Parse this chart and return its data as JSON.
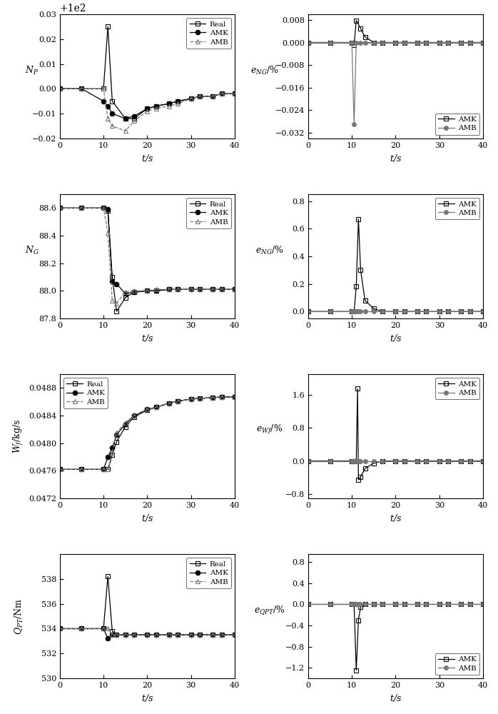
{
  "t1": [
    0,
    5,
    10,
    11,
    12,
    15,
    17,
    20,
    22,
    25,
    27,
    30,
    32,
    35,
    37,
    40
  ],
  "Np_real": [
    100.0,
    100.0,
    100.0,
    100.025,
    99.995,
    99.988,
    99.988,
    99.992,
    99.993,
    99.994,
    99.995,
    99.996,
    99.997,
    99.997,
    99.998,
    99.998
  ],
  "Np_AMK": [
    100.0,
    100.0,
    99.995,
    99.993,
    99.99,
    99.988,
    99.989,
    99.992,
    99.993,
    99.994,
    99.995,
    99.996,
    99.997,
    99.997,
    99.998,
    99.998
  ],
  "Np_AMB": [
    100.0,
    100.0,
    100.0,
    99.988,
    99.985,
    99.983,
    99.987,
    99.991,
    99.992,
    99.993,
    99.994,
    99.996,
    99.997,
    99.997,
    99.998,
    99.998
  ],
  "t_eNp": [
    0,
    5,
    10,
    10.5,
    11,
    12,
    13,
    15,
    17,
    20,
    22,
    25,
    27,
    30,
    32,
    35,
    37,
    40
  ],
  "eNp_AMK": [
    0.0,
    0.0,
    0.0,
    -0.001,
    0.0078,
    0.005,
    0.002,
    0.0,
    0.0,
    0.0,
    0.0,
    0.0,
    0.0,
    0.0,
    0.0,
    0.0,
    0.0,
    0.0
  ],
  "eNp_AMB": [
    0.0,
    0.0,
    0.0,
    -0.029,
    0.0,
    0.0,
    0.0,
    0.0,
    0.0,
    0.0,
    0.0,
    0.0,
    0.0,
    0.0,
    0.0,
    0.0,
    0.0,
    0.0
  ],
  "t2": [
    0,
    5,
    10,
    11,
    12,
    13,
    15,
    17,
    20,
    22,
    25,
    27,
    30,
    32,
    35,
    37,
    40
  ],
  "NG_real": [
    88.6,
    88.6,
    88.6,
    88.58,
    88.1,
    87.85,
    87.95,
    87.99,
    88.0,
    88.0,
    88.01,
    88.01,
    88.01,
    88.01,
    88.01,
    88.01,
    88.01
  ],
  "NG_AMK": [
    88.6,
    88.6,
    88.6,
    88.59,
    88.07,
    88.05,
    87.98,
    87.99,
    88.0,
    88.0,
    88.01,
    88.01,
    88.01,
    88.01,
    88.01,
    88.01,
    88.01
  ],
  "NG_AMB": [
    88.6,
    88.6,
    88.6,
    88.42,
    87.93,
    87.91,
    87.99,
    88.0,
    88.0,
    88.01,
    88.01,
    88.01,
    88.01,
    88.01,
    88.01,
    88.01,
    88.01
  ],
  "t_eNG": [
    0,
    5,
    10,
    10.5,
    11,
    11.5,
    12,
    13,
    15,
    17,
    20,
    22,
    25,
    27,
    30,
    32,
    35,
    37,
    40
  ],
  "eNG_AMK": [
    0.0,
    0.0,
    0.0,
    0.0,
    0.18,
    0.67,
    0.3,
    0.08,
    0.02,
    0.0,
    0.0,
    0.0,
    0.0,
    0.0,
    0.0,
    0.0,
    0.0,
    0.0,
    0.0
  ],
  "eNG_AMB": [
    0.0,
    0.0,
    0.0,
    0.0,
    0.0,
    0.0,
    0.0,
    0.0,
    0.0,
    0.0,
    0.0,
    0.0,
    0.0,
    0.0,
    0.0,
    0.0,
    0.0,
    0.0,
    0.0
  ],
  "t3": [
    0,
    5,
    10,
    11,
    12,
    13,
    15,
    17,
    20,
    22,
    25,
    27,
    30,
    32,
    35,
    37,
    40
  ],
  "Wf_real": [
    0.04762,
    0.04762,
    0.04762,
    0.04762,
    0.04783,
    0.04802,
    0.04824,
    0.04838,
    0.04848,
    0.04852,
    0.04858,
    0.04861,
    0.04864,
    0.04865,
    0.04866,
    0.04867,
    0.04867
  ],
  "Wf_AMK": [
    0.04762,
    0.04762,
    0.04762,
    0.0478,
    0.04793,
    0.04812,
    0.04828,
    0.0484,
    0.04849,
    0.04852,
    0.04858,
    0.04861,
    0.04864,
    0.04865,
    0.04866,
    0.04867,
    0.04867
  ],
  "Wf_AMB": [
    0.04762,
    0.04762,
    0.04762,
    0.04762,
    0.04786,
    0.04815,
    0.0483,
    0.0484,
    0.04849,
    0.04852,
    0.04858,
    0.04861,
    0.04864,
    0.04865,
    0.04866,
    0.04867,
    0.04867
  ],
  "t_eWf": [
    0,
    5,
    10,
    10.5,
    11,
    11.3,
    11.5,
    12,
    13,
    15,
    17,
    20,
    22,
    25,
    27,
    30,
    32,
    35,
    37,
    40
  ],
  "eWf_AMK": [
    0.0,
    0.0,
    0.0,
    0.0,
    0.0,
    1.75,
    -0.45,
    -0.38,
    -0.18,
    -0.05,
    0.0,
    0.0,
    0.0,
    0.0,
    0.0,
    0.0,
    0.0,
    0.0,
    0.0,
    0.0
  ],
  "eWf_AMB": [
    0.0,
    0.0,
    0.0,
    0.0,
    0.0,
    0.0,
    0.0,
    0.0,
    0.0,
    0.0,
    0.0,
    0.0,
    0.0,
    0.0,
    0.0,
    0.0,
    0.0,
    0.0,
    0.0,
    0.0
  ],
  "t4": [
    0,
    5,
    10,
    11,
    12,
    13,
    15,
    17,
    20,
    22,
    25,
    27,
    30,
    32,
    35,
    37,
    40
  ],
  "Qpt_real": [
    534.0,
    534.0,
    534.0,
    538.2,
    533.8,
    533.5,
    533.5,
    533.5,
    533.5,
    533.5,
    533.5,
    533.5,
    533.5,
    533.5,
    533.5,
    533.5,
    533.5
  ],
  "Qpt_AMK": [
    534.0,
    534.0,
    534.0,
    533.2,
    533.5,
    533.5,
    533.5,
    533.5,
    533.5,
    533.5,
    533.5,
    533.5,
    533.5,
    533.5,
    533.5,
    533.5,
    533.5
  ],
  "Qpt_AMB": [
    534.0,
    534.0,
    534.0,
    534.0,
    533.5,
    533.5,
    533.5,
    533.5,
    533.5,
    533.5,
    533.5,
    533.5,
    533.5,
    533.5,
    533.5,
    533.5,
    533.5
  ],
  "t_eQpt": [
    0,
    5,
    10,
    10.5,
    11,
    11.5,
    12,
    13,
    15,
    17,
    20,
    22,
    25,
    27,
    30,
    32,
    35,
    37,
    40
  ],
  "eQpt_AMK": [
    0.0,
    0.0,
    0.0,
    0.0,
    -1.25,
    -0.3,
    -0.05,
    0.0,
    0.0,
    0.0,
    0.0,
    0.0,
    0.0,
    0.0,
    0.0,
    0.0,
    0.0,
    0.0,
    0.0
  ],
  "eQpt_AMB": [
    0.0,
    0.0,
    0.0,
    0.0,
    0.0,
    0.0,
    0.0,
    0.0,
    0.0,
    0.0,
    0.0,
    0.0,
    0.0,
    0.0,
    0.0,
    0.0,
    0.0,
    0.0,
    0.0
  ],
  "ylim_Np": [
    99.98,
    100.03
  ],
  "yticks_Np": [
    99.98,
    99.99,
    100.0,
    100.01,
    100.02,
    100.03
  ],
  "ylim_eNp": [
    -0.034,
    0.01
  ],
  "yticks_eNp": [
    -0.032,
    -0.024,
    -0.016,
    -0.008,
    0.0,
    0.008
  ],
  "ylim_NG": [
    87.8,
    88.7
  ],
  "yticks_NG": [
    87.8,
    88.0,
    88.2,
    88.4,
    88.6
  ],
  "ylim_eNG": [
    -0.05,
    0.85
  ],
  "yticks_eNG": [
    0.0,
    0.2,
    0.4,
    0.6,
    0.8
  ],
  "ylim_Wf": [
    0.0472,
    0.049
  ],
  "yticks_Wf": [
    0.0472,
    0.0476,
    0.048,
    0.0484,
    0.0488
  ],
  "ylim_eWf": [
    -0.9,
    2.1
  ],
  "yticks_eWf": [
    -0.8,
    0.0,
    0.8,
    1.6
  ],
  "ylim_Qpt": [
    530,
    540
  ],
  "yticks_Qpt": [
    530,
    532,
    534,
    536,
    538
  ],
  "ylim_eQpt": [
    -1.4,
    0.95
  ],
  "yticks_eQpt": [
    -1.2,
    -0.8,
    -0.4,
    0.0,
    0.4,
    0.8
  ]
}
